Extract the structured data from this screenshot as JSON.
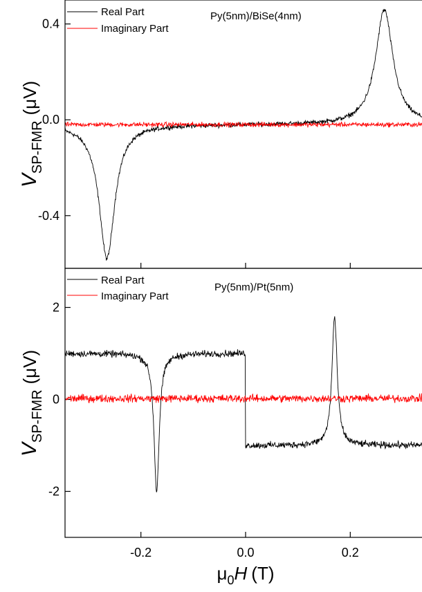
{
  "colors": {
    "real": "#000000",
    "imaginary": "#ff0000",
    "axis": "#000000"
  },
  "chart_data": [
    {
      "type": "line",
      "annotation": "Py(5nm)/BiSe(4nm)",
      "ylabel_main": "V",
      "ylabel_sub": "SP-FMR",
      "ylabel_unit": "(μV)",
      "xlim": [
        -0.345,
        0.345
      ],
      "ylim": [
        -0.62,
        0.5
      ],
      "yticks": [
        -0.4,
        0.0,
        0.4
      ],
      "ytick_labels": [
        "-0.4",
        "0.0",
        "0.4"
      ],
      "xticks": [
        -0.2,
        0.0,
        0.2
      ],
      "legend": "top-left",
      "series": [
        {
          "name": "Real Part",
          "color": "#000000",
          "model": {
            "kind": "lorentzian",
            "centers": [
              -0.265,
              0.265
            ],
            "amplitudes": [
              -0.56,
              0.48
            ],
            "widths": [
              0.018,
              0.02
            ],
            "offset": -0.02,
            "noise": 0.008
          }
        },
        {
          "name": "Imaginary Part",
          "color": "#ff0000",
          "model": {
            "kind": "flat",
            "offset": -0.02,
            "noise": 0.008
          }
        }
      ]
    },
    {
      "type": "line",
      "annotation": "Py(5nm)/Pt(5nm)",
      "ylabel_main": "V",
      "ylabel_sub": "SP-FMR",
      "ylabel_unit": "(μV)",
      "xlim": [
        -0.345,
        0.345
      ],
      "ylim": [
        -3.0,
        2.85
      ],
      "yticks": [
        -2,
        0,
        2
      ],
      "ytick_labels": [
        "-2",
        "0",
        "2"
      ],
      "xticks": [
        -0.2,
        0.0,
        0.2
      ],
      "xtick_labels": [
        "-0.2",
        "0.0",
        "0.2"
      ],
      "xlabel_main": "μ",
      "xlabel_sub": "0",
      "xlabel_var": "H",
      "xlabel_unit": "(T)",
      "legend": "top-left",
      "series": [
        {
          "name": "Real Part",
          "color": "#000000",
          "model": {
            "kind": "step_lorentzian",
            "plateau": 1.0,
            "step_at": 0.0,
            "centers": [
              -0.17,
              0.17
            ],
            "amplitudes": [
              -3.0,
              2.8
            ],
            "widths": [
              0.006,
              0.006
            ],
            "noise": 0.06
          }
        },
        {
          "name": "Imaginary Part",
          "color": "#ff0000",
          "model": {
            "kind": "flat",
            "offset": 0.02,
            "noise": 0.07
          }
        }
      ]
    }
  ]
}
